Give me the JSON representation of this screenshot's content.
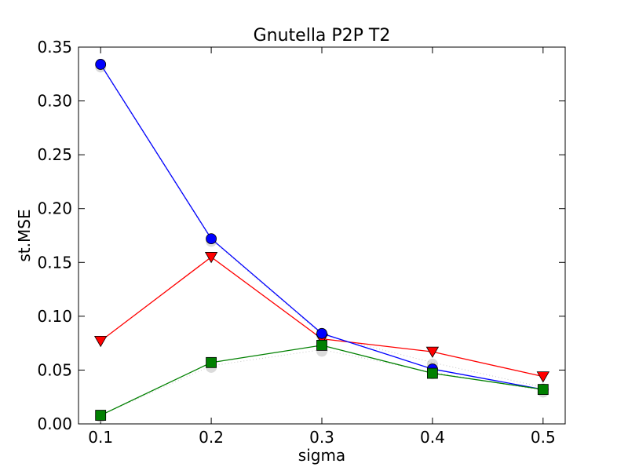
{
  "chart_data": {
    "type": "line",
    "title": "Gnutella P2P T2",
    "xlabel": "sigma",
    "ylabel": "st.MSE",
    "x": [
      0.1,
      0.2,
      0.3,
      0.4,
      0.5
    ],
    "xlim": [
      0.08,
      0.52
    ],
    "ylim": [
      0.0,
      0.35
    ],
    "xticks": [
      "0.1",
      "0.2",
      "0.3",
      "0.4",
      "0.5"
    ],
    "yticks": [
      "0.00",
      "0.05",
      "0.10",
      "0.15",
      "0.20",
      "0.25",
      "0.30",
      "0.35"
    ],
    "grid": false,
    "legend": "none",
    "series": [
      {
        "marker": "triangle-down",
        "color": "#ff0000",
        "values": [
          0.077,
          0.155,
          0.079,
          0.067,
          0.044
        ]
      },
      {
        "marker": "circle",
        "color": "#0000ff",
        "values": [
          0.334,
          0.172,
          0.084,
          0.051,
          0.032
        ]
      },
      {
        "marker": "square",
        "color": "#008000",
        "values": [
          0.008,
          0.057,
          0.073,
          0.047,
          0.032
        ]
      }
    ],
    "shadow_series": [
      {
        "color": "#b0b0b0",
        "values": [
          0.333,
          0.171,
          0.083,
          0.057,
          0.034
        ]
      },
      {
        "color": "#b0b0b0",
        "values": [
          0.008,
          0.054,
          0.069,
          0.048,
          0.031
        ]
      }
    ]
  }
}
